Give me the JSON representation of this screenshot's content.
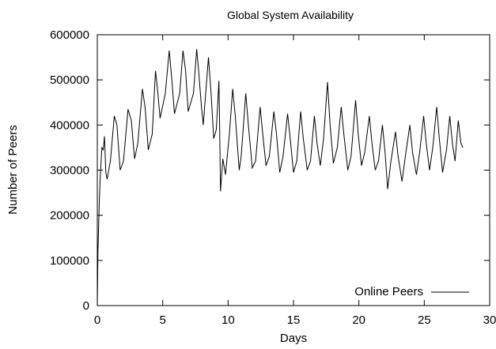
{
  "chart_data": {
    "type": "line",
    "title": "Global System Availability",
    "xlabel": "Days",
    "ylabel": "Number of Peers",
    "xlim": [
      0,
      30
    ],
    "ylim": [
      0,
      600000
    ],
    "xticks": [
      0,
      5,
      10,
      15,
      20,
      25,
      30
    ],
    "yticks": [
      0,
      100000,
      200000,
      300000,
      400000,
      500000,
      600000
    ],
    "grid": false,
    "legend_position": "bottom-right",
    "series": [
      {
        "name": "Online Peers",
        "color": "#000000",
        "points": [
          [
            0,
            0
          ],
          [
            0.05,
            120000
          ],
          [
            0.15,
            230000
          ],
          [
            0.25,
            300000
          ],
          [
            0.35,
            350000
          ],
          [
            0.45,
            345000
          ],
          [
            0.55,
            375000
          ],
          [
            0.65,
            295000
          ],
          [
            0.75,
            280000
          ],
          [
            1.0,
            320000
          ],
          [
            1.3,
            420000
          ],
          [
            1.5,
            400000
          ],
          [
            1.75,
            300000
          ],
          [
            2.0,
            320000
          ],
          [
            2.35,
            435000
          ],
          [
            2.6,
            410000
          ],
          [
            2.85,
            325000
          ],
          [
            3.1,
            360000
          ],
          [
            3.45,
            480000
          ],
          [
            3.65,
            440000
          ],
          [
            3.9,
            345000
          ],
          [
            4.2,
            380000
          ],
          [
            4.45,
            520000
          ],
          [
            4.6,
            480000
          ],
          [
            4.8,
            415000
          ],
          [
            5.2,
            470000
          ],
          [
            5.5,
            565000
          ],
          [
            5.7,
            500000
          ],
          [
            5.9,
            425000
          ],
          [
            6.3,
            470000
          ],
          [
            6.55,
            565000
          ],
          [
            6.75,
            520000
          ],
          [
            6.95,
            430000
          ],
          [
            7.35,
            470000
          ],
          [
            7.6,
            568000
          ],
          [
            7.75,
            520000
          ],
          [
            7.95,
            445000
          ],
          [
            8.1,
            400000
          ],
          [
            8.5,
            550000
          ],
          [
            8.7,
            470000
          ],
          [
            8.9,
            370000
          ],
          [
            9.1,
            390000
          ],
          [
            9.3,
            498000
          ],
          [
            9.35,
            405000
          ],
          [
            9.42,
            253000
          ],
          [
            9.6,
            325000
          ],
          [
            9.8,
            290000
          ],
          [
            10.1,
            380000
          ],
          [
            10.35,
            480000
          ],
          [
            10.55,
            420000
          ],
          [
            10.85,
            300000
          ],
          [
            11.0,
            330000
          ],
          [
            11.35,
            470000
          ],
          [
            11.55,
            400000
          ],
          [
            11.85,
            305000
          ],
          [
            12.1,
            320000
          ],
          [
            12.45,
            440000
          ],
          [
            12.65,
            380000
          ],
          [
            12.9,
            310000
          ],
          [
            13.15,
            330000
          ],
          [
            13.5,
            430000
          ],
          [
            13.7,
            380000
          ],
          [
            13.95,
            295000
          ],
          [
            14.2,
            330000
          ],
          [
            14.55,
            425000
          ],
          [
            14.75,
            370000
          ],
          [
            15.0,
            295000
          ],
          [
            15.25,
            320000
          ],
          [
            15.55,
            430000
          ],
          [
            15.75,
            370000
          ],
          [
            16.05,
            300000
          ],
          [
            16.3,
            320000
          ],
          [
            16.6,
            420000
          ],
          [
            16.8,
            360000
          ],
          [
            17.05,
            310000
          ],
          [
            17.3,
            370000
          ],
          [
            17.6,
            495000
          ],
          [
            17.8,
            400000
          ],
          [
            18.05,
            315000
          ],
          [
            18.35,
            350000
          ],
          [
            18.65,
            440000
          ],
          [
            18.85,
            380000
          ],
          [
            19.15,
            300000
          ],
          [
            19.4,
            330000
          ],
          [
            19.75,
            455000
          ],
          [
            19.95,
            380000
          ],
          [
            20.2,
            310000
          ],
          [
            20.45,
            340000
          ],
          [
            20.8,
            420000
          ],
          [
            21.0,
            360000
          ],
          [
            21.25,
            300000
          ],
          [
            21.5,
            320000
          ],
          [
            21.8,
            400000
          ],
          [
            22.0,
            340000
          ],
          [
            22.2,
            258000
          ],
          [
            22.45,
            320000
          ],
          [
            22.8,
            385000
          ],
          [
            23.0,
            330000
          ],
          [
            23.3,
            275000
          ],
          [
            23.55,
            330000
          ],
          [
            23.9,
            400000
          ],
          [
            24.1,
            340000
          ],
          [
            24.4,
            290000
          ],
          [
            24.65,
            340000
          ],
          [
            24.95,
            420000
          ],
          [
            25.15,
            360000
          ],
          [
            25.4,
            300000
          ],
          [
            25.65,
            350000
          ],
          [
            25.95,
            440000
          ],
          [
            26.15,
            370000
          ],
          [
            26.4,
            295000
          ],
          [
            26.7,
            345000
          ],
          [
            26.95,
            420000
          ],
          [
            27.15,
            360000
          ],
          [
            27.35,
            320000
          ],
          [
            27.6,
            410000
          ],
          [
            27.8,
            360000
          ],
          [
            27.95,
            350000
          ]
        ]
      }
    ]
  }
}
